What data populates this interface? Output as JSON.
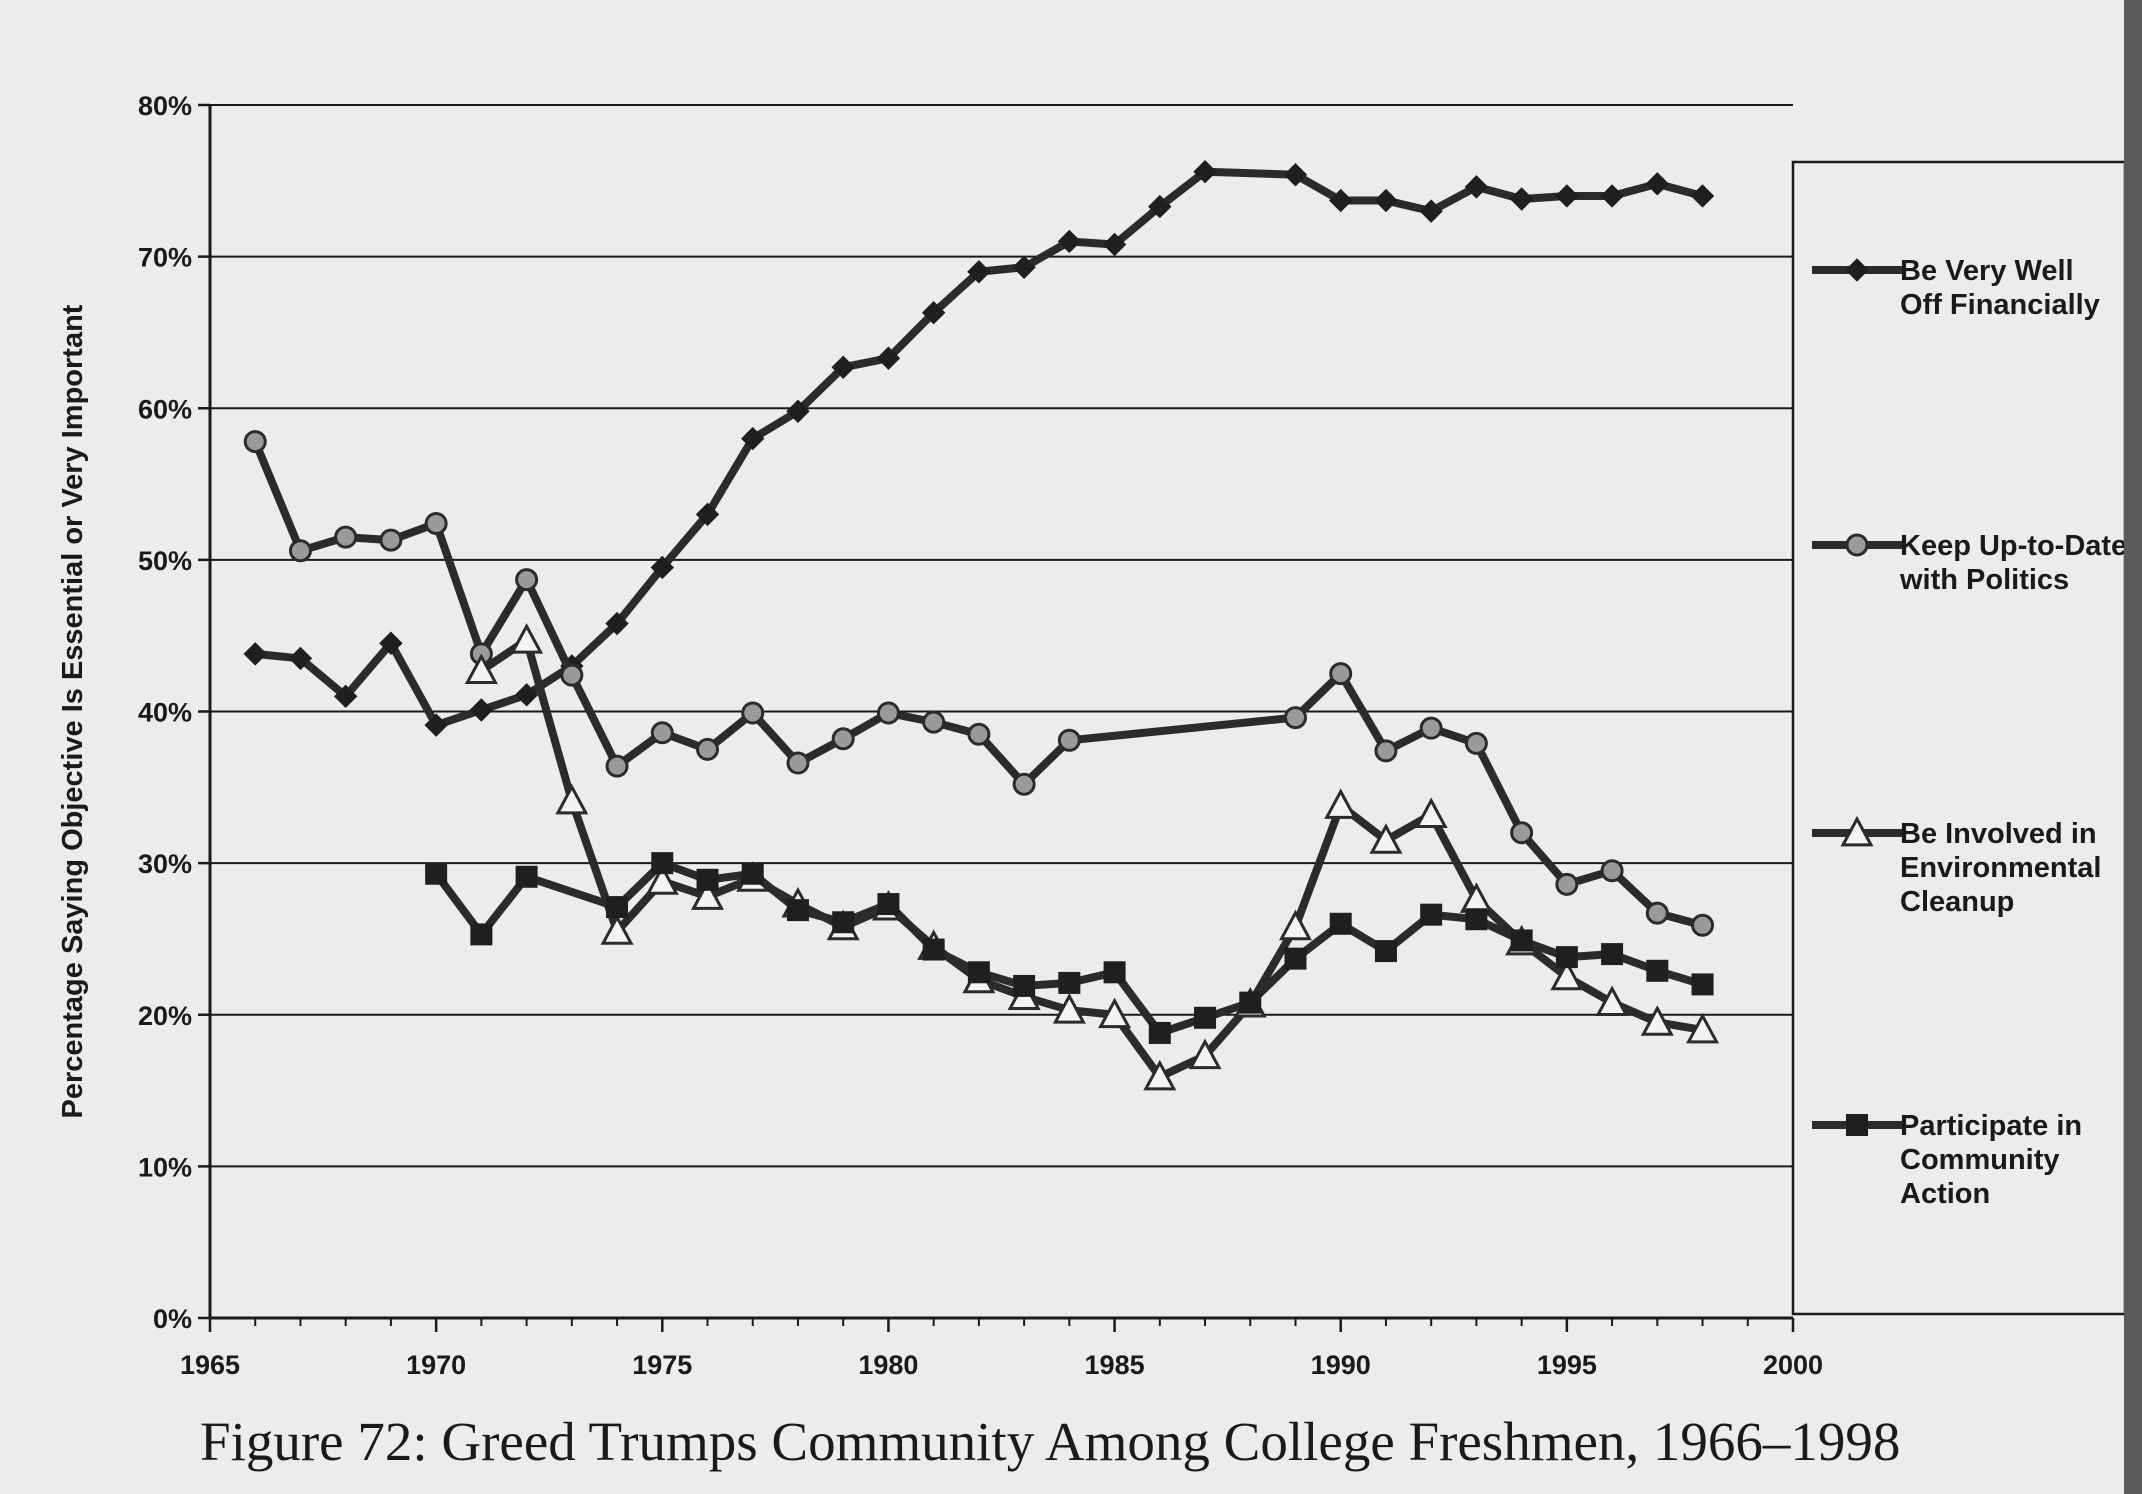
{
  "caption": "Figure 72: Greed Trumps Community Among College Freshmen, 1966–1998",
  "chart_data": {
    "type": "line",
    "title": "Figure 72: Greed Trumps Community Among College Freshmen, 1966–1998",
    "xlabel": "",
    "ylabel": "Percentage Saying Objective Is Essential or Very Important",
    "xlim": [
      1965,
      2000
    ],
    "ylim": [
      0,
      80
    ],
    "x_ticks": [
      "1965",
      "1970",
      "1975",
      "1980",
      "1985",
      "1990",
      "1995",
      "2000"
    ],
    "y_ticks": [
      "0%",
      "10%",
      "20%",
      "30%",
      "40%",
      "50%",
      "60%",
      "70%",
      "80%"
    ],
    "grid": "horizontal",
    "legend_position": "right",
    "series": [
      {
        "name": "Be Very Well Off Financially",
        "legend_lines": [
          "Be Very Well",
          "Off Financially"
        ],
        "marker": "diamond",
        "color": "#2b2b2b",
        "points": [
          [
            1966,
            43.8
          ],
          [
            1967,
            43.5
          ],
          [
            1968,
            41
          ],
          [
            1969,
            44.5
          ],
          [
            1970,
            39.1
          ],
          [
            1971,
            40.1
          ],
          [
            1972,
            41.1
          ],
          [
            1973,
            43
          ],
          [
            1974,
            45.8
          ],
          [
            1975,
            49.5
          ],
          [
            1976,
            53
          ],
          [
            1977,
            58
          ],
          [
            1978,
            59.8
          ],
          [
            1979,
            62.7
          ],
          [
            1980,
            63.3
          ],
          [
            1981,
            66.3
          ],
          [
            1982,
            69
          ],
          [
            1983,
            69.3
          ],
          [
            1984,
            71
          ],
          [
            1985,
            70.8
          ],
          [
            1986,
            73.3
          ],
          [
            1987,
            75.6
          ],
          [
            1989,
            75.4
          ],
          [
            1990,
            73.7
          ],
          [
            1991,
            73.7
          ],
          [
            1992,
            73
          ],
          [
            1993,
            74.6
          ],
          [
            1994,
            73.8
          ],
          [
            1995,
            74
          ],
          [
            1996,
            74
          ],
          [
            1997,
            74.8
          ],
          [
            1998,
            74
          ]
        ]
      },
      {
        "name": "Keep Up-to-Date with Politics",
        "legend_lines": [
          "Keep Up-to-Date",
          "with Politics"
        ],
        "marker": "circle",
        "color": "#2b2b2b",
        "points": [
          [
            1966,
            57.8
          ],
          [
            1967,
            50.6
          ],
          [
            1968,
            51.5
          ],
          [
            1969,
            51.3
          ],
          [
            1970,
            52.4
          ],
          [
            1971,
            43.8
          ],
          [
            1972,
            48.7
          ],
          [
            1973,
            42.4
          ],
          [
            1974,
            36.4
          ],
          [
            1975,
            38.6
          ],
          [
            1976,
            37.5
          ],
          [
            1977,
            39.9
          ],
          [
            1978,
            36.6
          ],
          [
            1979,
            38.2
          ],
          [
            1980,
            39.9
          ],
          [
            1981,
            39.3
          ],
          [
            1982,
            38.5
          ],
          [
            1983,
            35.2
          ],
          [
            1984,
            38.1
          ],
          [
            1989,
            39.6
          ],
          [
            1990,
            42.5
          ],
          [
            1991,
            37.4
          ],
          [
            1992,
            38.9
          ],
          [
            1993,
            37.9
          ],
          [
            1994,
            32
          ],
          [
            1995,
            28.6
          ],
          [
            1996,
            29.5
          ],
          [
            1997,
            26.7
          ],
          [
            1998,
            25.9
          ]
        ]
      },
      {
        "name": "Be Involved in Environmental Cleanup",
        "legend_lines": [
          "Be Involved in",
          "Environmental",
          "Cleanup"
        ],
        "marker": "triangle",
        "color": "#2b2b2b",
        "points": [
          [
            1971,
            42.7
          ],
          [
            1972,
            44.7
          ],
          [
            1973,
            34.1
          ],
          [
            1974,
            25.5
          ],
          [
            1975,
            28.8
          ],
          [
            1976,
            27.8
          ],
          [
            1977,
            29
          ],
          [
            1978,
            27.3
          ],
          [
            1979,
            25.8
          ],
          [
            1980,
            27.1
          ],
          [
            1981,
            24.5
          ],
          [
            1982,
            22.3
          ],
          [
            1983,
            21.2
          ],
          [
            1984,
            20.3
          ],
          [
            1985,
            20
          ],
          [
            1986,
            15.9
          ],
          [
            1987,
            17.3
          ],
          [
            1988,
            20.7
          ],
          [
            1989,
            25.8
          ],
          [
            1990,
            33.8
          ],
          [
            1991,
            31.5
          ],
          [
            1992,
            33.2
          ],
          [
            1993,
            27.6
          ],
          [
            1994,
            24.8
          ],
          [
            1995,
            22.5
          ],
          [
            1996,
            20.8
          ],
          [
            1997,
            19.5
          ],
          [
            1998,
            19
          ]
        ]
      },
      {
        "name": "Participate in Community Action",
        "legend_lines": [
          "Participate in",
          "Community",
          "Action"
        ],
        "marker": "square",
        "color": "#2b2b2b",
        "points": [
          [
            1970,
            29.3
          ],
          [
            1971,
            25.3
          ],
          [
            1972,
            29.1
          ],
          [
            1974,
            27.1
          ],
          [
            1975,
            30
          ],
          [
            1976,
            28.9
          ],
          [
            1977,
            29.3
          ],
          [
            1978,
            26.9
          ],
          [
            1979,
            26.1
          ],
          [
            1980,
            27.3
          ],
          [
            1981,
            24.3
          ],
          [
            1982,
            22.8
          ],
          [
            1983,
            21.9
          ],
          [
            1984,
            22.1
          ],
          [
            1985,
            22.8
          ],
          [
            1986,
            18.8
          ],
          [
            1987,
            19.8
          ],
          [
            1988,
            20.8
          ],
          [
            1989,
            23.7
          ],
          [
            1990,
            26
          ],
          [
            1991,
            24.2
          ],
          [
            1992,
            26.6
          ],
          [
            1993,
            26.3
          ],
          [
            1994,
            24.9
          ],
          [
            1995,
            23.8
          ],
          [
            1996,
            24
          ],
          [
            1997,
            22.9
          ],
          [
            1998,
            22
          ]
        ]
      }
    ]
  }
}
